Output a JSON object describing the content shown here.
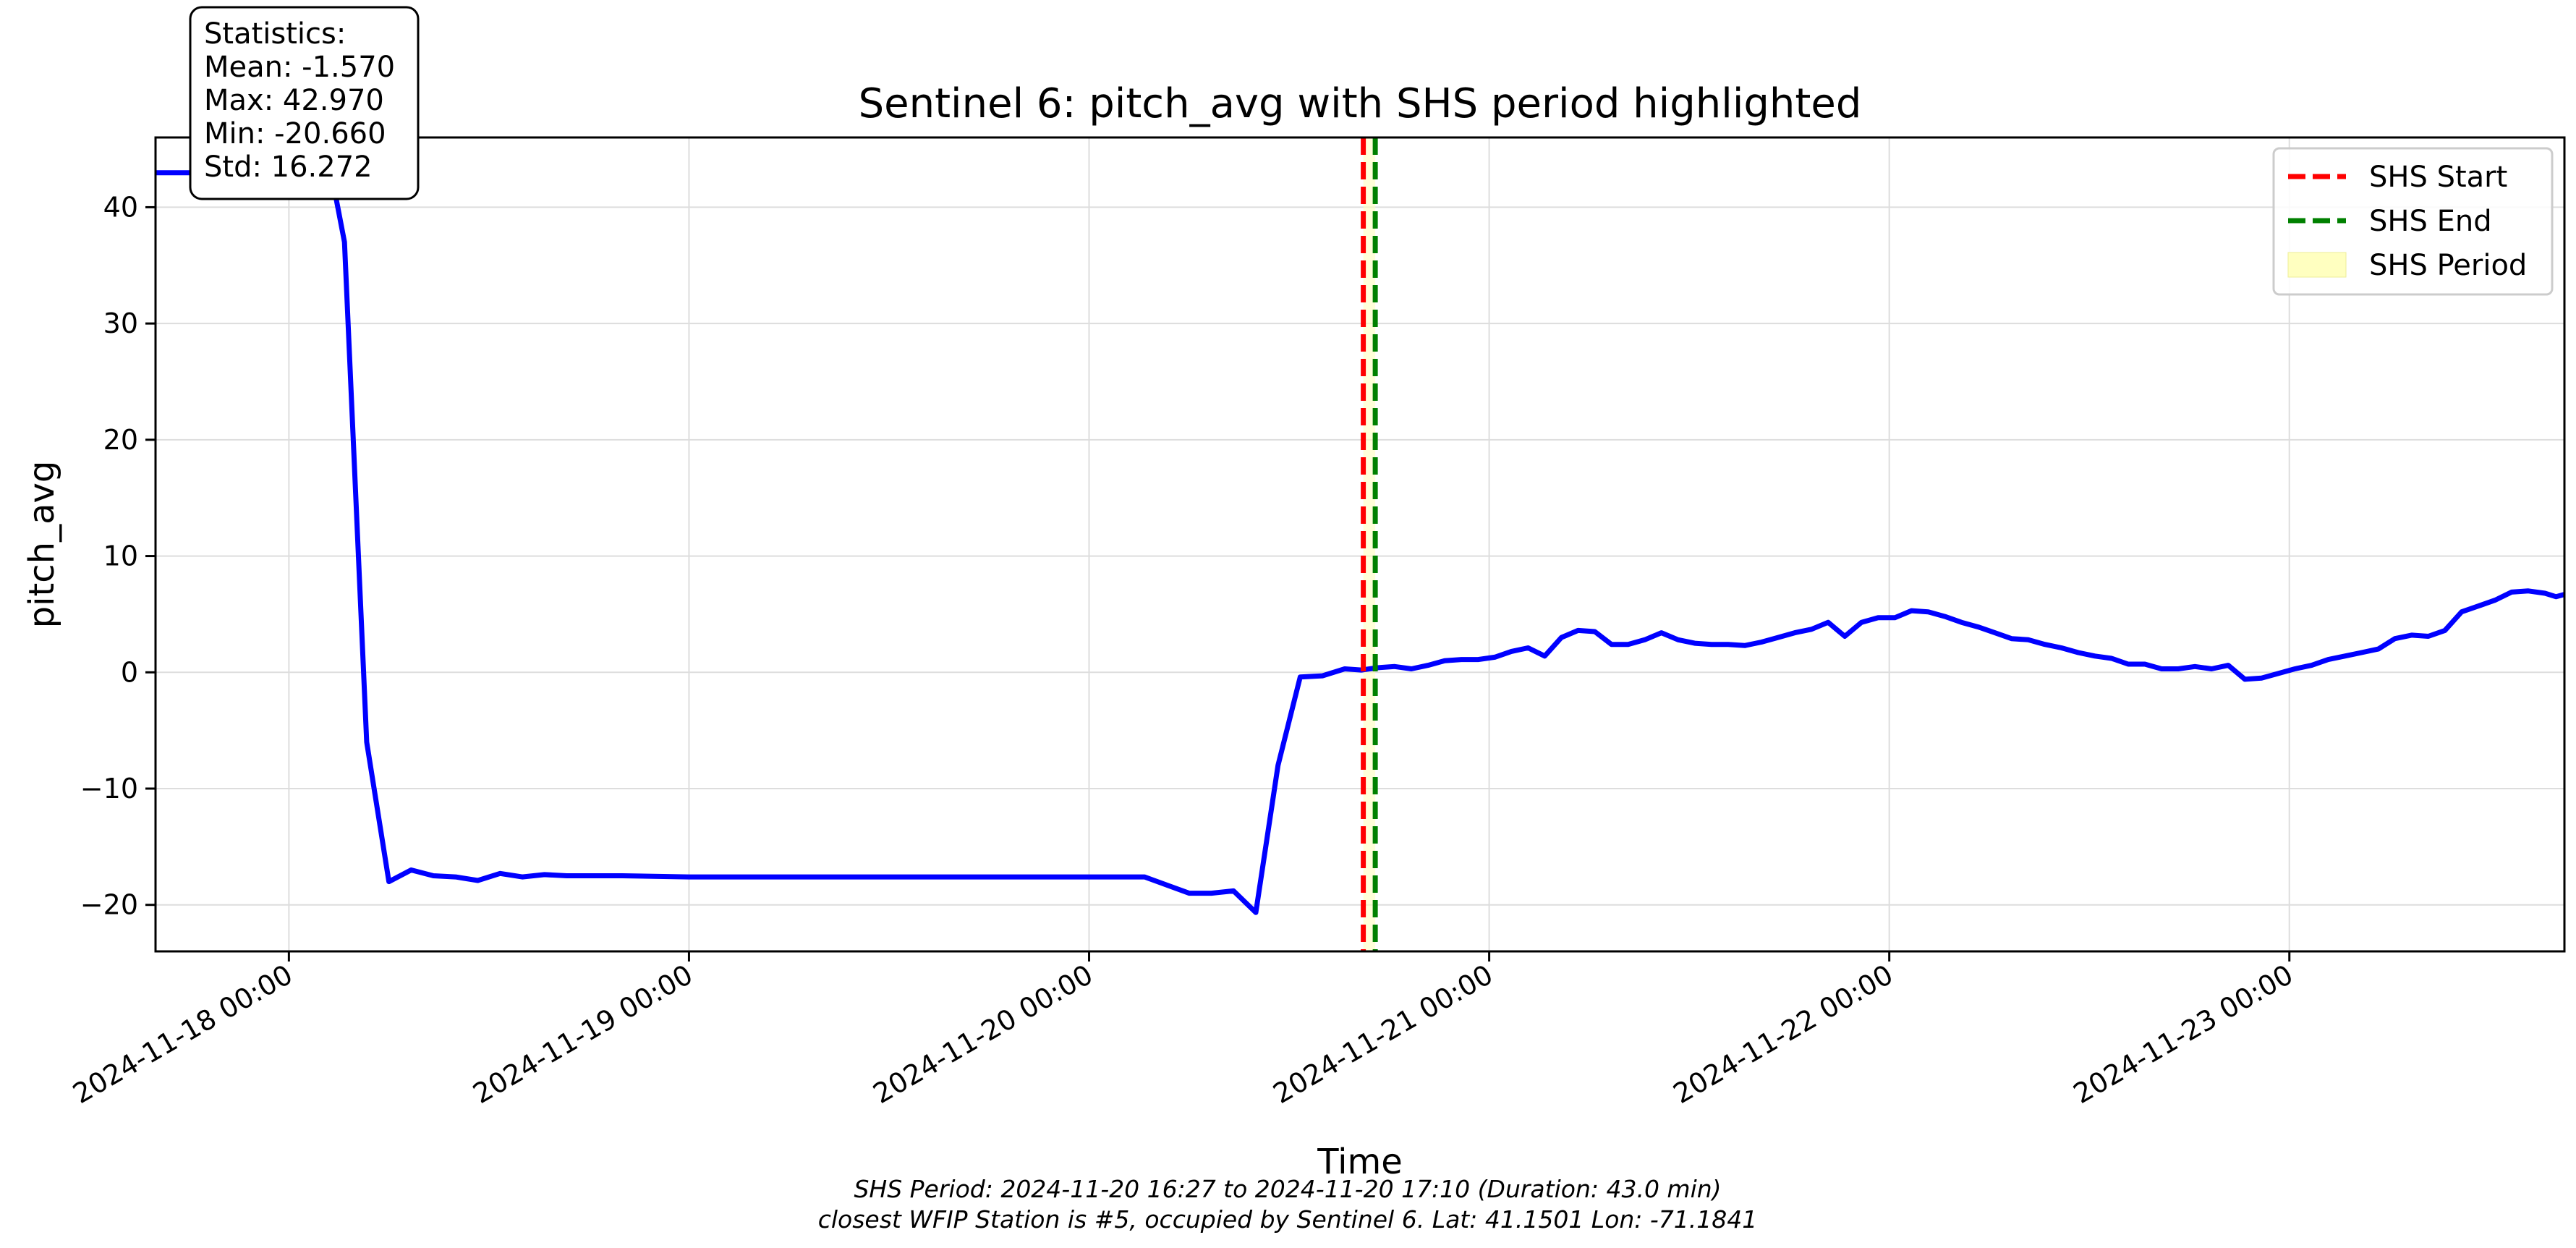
{
  "chart_data": {
    "type": "line",
    "title": "Sentinel 6: pitch_avg with SHS period highlighted",
    "xlabel": "Time",
    "ylabel": "pitch_avg",
    "xlim": [
      "2024-11-17 16:00",
      "2024-11-23 16:30"
    ],
    "ylim": [
      -24,
      46
    ],
    "grid": true,
    "x_ticks": [
      "2024-11-18 00:00",
      "2024-11-19 00:00",
      "2024-11-20 00:00",
      "2024-11-21 00:00",
      "2024-11-22 00:00",
      "2024-11-23 00:00"
    ],
    "y_ticks": [
      -20,
      -10,
      0,
      10,
      20,
      30,
      40
    ],
    "y_tick_labels": [
      "−20",
      "−10",
      "0",
      "10",
      "20",
      "30",
      "40"
    ],
    "series": [
      {
        "color": "#0000ff",
        "points": [
          [
            "2024-11-17 16:00",
            42.97
          ],
          [
            "2024-11-17 18:00",
            42.97
          ],
          [
            "2024-11-17 20:00",
            42.97
          ],
          [
            "2024-11-17 22:00",
            42.97
          ],
          [
            "2024-11-18 00:00",
            42.97
          ],
          [
            "2024-11-18 02:00",
            42.97
          ],
          [
            "2024-11-18 02:40",
            42.0
          ],
          [
            "2024-11-18 03:20",
            37.0
          ],
          [
            "2024-11-18 04:40",
            -6.0
          ],
          [
            "2024-11-18 06:00",
            -18.0
          ],
          [
            "2024-11-18 07:20",
            -17.0
          ],
          [
            "2024-11-18 08:40",
            -17.5
          ],
          [
            "2024-11-18 10:00",
            -17.6
          ],
          [
            "2024-11-18 11:20",
            -17.9
          ],
          [
            "2024-11-18 12:40",
            -17.3
          ],
          [
            "2024-11-18 14:00",
            -17.6
          ],
          [
            "2024-11-18 15:20",
            -17.4
          ],
          [
            "2024-11-18 16:40",
            -17.5
          ],
          [
            "2024-11-18 20:00",
            -17.5
          ],
          [
            "2024-11-19 00:00",
            -17.6
          ],
          [
            "2024-11-19 04:00",
            -17.6
          ],
          [
            "2024-11-19 08:00",
            -17.6
          ],
          [
            "2024-11-19 12:00",
            -17.6
          ],
          [
            "2024-11-19 16:00",
            -17.6
          ],
          [
            "2024-11-19 20:00",
            -17.6
          ],
          [
            "2024-11-20 00:00",
            -17.6
          ],
          [
            "2024-11-20 02:00",
            -17.6
          ],
          [
            "2024-11-20 03:20",
            -17.6
          ],
          [
            "2024-11-20 04:40",
            -18.3
          ],
          [
            "2024-11-20 06:00",
            -19.0
          ],
          [
            "2024-11-20 07:20",
            -19.0
          ],
          [
            "2024-11-20 08:40",
            -18.8
          ],
          [
            "2024-11-20 10:00",
            -20.66
          ],
          [
            "2024-11-20 11:20",
            -8.0
          ],
          [
            "2024-11-20 12:40",
            -0.4
          ],
          [
            "2024-11-20 14:00",
            -0.3
          ],
          [
            "2024-11-20 15:20",
            0.3
          ],
          [
            "2024-11-20 16:20",
            0.2
          ],
          [
            "2024-11-20 17:20",
            0.4
          ],
          [
            "2024-11-20 18:20",
            0.5
          ],
          [
            "2024-11-20 19:20",
            0.3
          ],
          [
            "2024-11-20 20:20",
            0.6
          ],
          [
            "2024-11-20 21:20",
            1.0
          ],
          [
            "2024-11-20 22:20",
            1.1
          ],
          [
            "2024-11-20 23:20",
            1.1
          ],
          [
            "2024-11-21 00:20",
            1.3
          ],
          [
            "2024-11-21 01:20",
            1.8
          ],
          [
            "2024-11-21 02:20",
            2.1
          ],
          [
            "2024-11-21 03:20",
            1.4
          ],
          [
            "2024-11-21 04:20",
            3.0
          ],
          [
            "2024-11-21 05:20",
            3.6
          ],
          [
            "2024-11-21 06:20",
            3.5
          ],
          [
            "2024-11-21 07:20",
            2.4
          ],
          [
            "2024-11-21 08:20",
            2.4
          ],
          [
            "2024-11-21 09:20",
            2.8
          ],
          [
            "2024-11-21 10:20",
            3.4
          ],
          [
            "2024-11-21 11:20",
            2.8
          ],
          [
            "2024-11-21 12:20",
            2.5
          ],
          [
            "2024-11-21 13:20",
            2.4
          ],
          [
            "2024-11-21 14:20",
            2.4
          ],
          [
            "2024-11-21 15:20",
            2.3
          ],
          [
            "2024-11-21 16:20",
            2.6
          ],
          [
            "2024-11-21 17:20",
            3.0
          ],
          [
            "2024-11-21 18:20",
            3.4
          ],
          [
            "2024-11-21 19:20",
            3.7
          ],
          [
            "2024-11-21 20:20",
            4.3
          ],
          [
            "2024-11-21 21:20",
            3.1
          ],
          [
            "2024-11-21 22:20",
            4.3
          ],
          [
            "2024-11-21 23:20",
            4.7
          ],
          [
            "2024-11-22 00:20",
            4.7
          ],
          [
            "2024-11-22 01:20",
            5.3
          ],
          [
            "2024-11-22 02:20",
            5.2
          ],
          [
            "2024-11-22 03:20",
            4.8
          ],
          [
            "2024-11-22 04:20",
            4.3
          ],
          [
            "2024-11-22 05:20",
            3.9
          ],
          [
            "2024-11-22 06:20",
            3.4
          ],
          [
            "2024-11-22 07:20",
            2.9
          ],
          [
            "2024-11-22 08:20",
            2.8
          ],
          [
            "2024-11-22 09:20",
            2.4
          ],
          [
            "2024-11-22 10:20",
            2.1
          ],
          [
            "2024-11-22 11:20",
            1.7
          ],
          [
            "2024-11-22 12:20",
            1.4
          ],
          [
            "2024-11-22 13:20",
            1.2
          ],
          [
            "2024-11-22 14:20",
            0.7
          ],
          [
            "2024-11-22 15:20",
            0.7
          ],
          [
            "2024-11-22 16:20",
            0.3
          ],
          [
            "2024-11-22 17:20",
            0.3
          ],
          [
            "2024-11-22 18:20",
            0.5
          ],
          [
            "2024-11-22 19:20",
            0.3
          ],
          [
            "2024-11-22 20:20",
            0.6
          ],
          [
            "2024-11-22 21:20",
            -0.6
          ],
          [
            "2024-11-22 22:20",
            -0.5
          ],
          [
            "2024-11-22 23:20",
            -0.1
          ],
          [
            "2024-11-23 00:20",
            0.3
          ],
          [
            "2024-11-23 01:20",
            0.6
          ],
          [
            "2024-11-23 02:20",
            1.1
          ],
          [
            "2024-11-23 03:20",
            1.4
          ],
          [
            "2024-11-23 04:20",
            1.7
          ],
          [
            "2024-11-23 05:20",
            2.0
          ],
          [
            "2024-11-23 06:20",
            2.9
          ],
          [
            "2024-11-23 07:20",
            3.2
          ],
          [
            "2024-11-23 08:20",
            3.1
          ],
          [
            "2024-11-23 09:20",
            3.6
          ],
          [
            "2024-11-23 10:20",
            5.2
          ],
          [
            "2024-11-23 11:20",
            5.7
          ],
          [
            "2024-11-23 12:20",
            6.2
          ],
          [
            "2024-11-23 13:20",
            6.9
          ],
          [
            "2024-11-23 14:20",
            7.0
          ],
          [
            "2024-11-23 15:20",
            6.8
          ],
          [
            "2024-11-23 16:00",
            6.5
          ],
          [
            "2024-11-23 16:30",
            6.7
          ]
        ]
      }
    ],
    "shs_start": "2024-11-20 16:27",
    "shs_end": "2024-11-20 17:10",
    "shs_start_color": "#ff0000",
    "shs_end_color": "#008000",
    "shs_period_color": "#ffffc0",
    "legend": {
      "placement": "top-right",
      "entries": [
        "SHS Start",
        "SHS End",
        "SHS Period"
      ]
    },
    "stats_box": {
      "placement": "top-left",
      "lines": [
        "Statistics:",
        "Mean: -1.570",
        "Max: 42.970",
        "Min: -20.660",
        "Std: 16.272"
      ]
    },
    "footnotes": [
      "SHS Period: 2024-11-20 16:27 to 2024-11-20 17:10 (Duration: 43.0 min)",
      "closest WFIP Station is #5, occupied by Sentinel 6. Lat: 41.1501 Lon: -71.1841"
    ]
  }
}
